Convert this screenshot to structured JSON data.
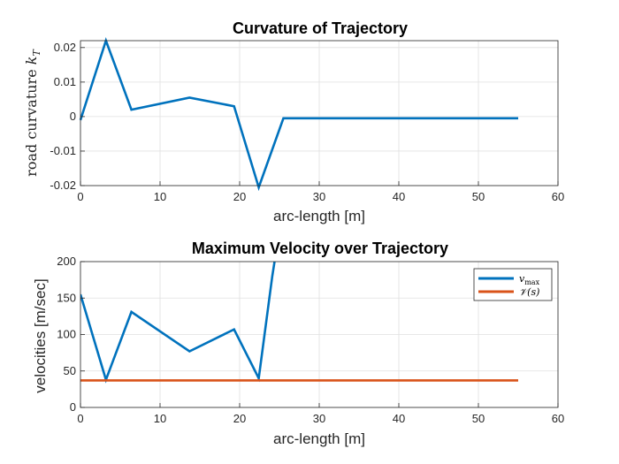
{
  "chart_data": [
    {
      "type": "line",
      "title": "Curvature of Trajectory",
      "xlabel": "arc-length [m]",
      "ylabel": "road curvature k_T",
      "xlim": [
        0,
        60
      ],
      "ylim": [
        -0.02,
        0.022
      ],
      "xticks": [
        "0",
        "10",
        "20",
        "30",
        "40",
        "50",
        "60"
      ],
      "yticks": [
        "-0.02",
        "-0.01",
        "0",
        "0.01",
        "0.02"
      ],
      "grid": true,
      "series": [
        {
          "color": "#0072BD",
          "x": [
            0,
            3.2,
            6.4,
            13.7,
            19.3,
            22.4,
            25.5,
            40,
            55
          ],
          "y": [
            -0.001,
            0.022,
            0.002,
            0.0055,
            0.003,
            -0.0205,
            -0.0005,
            -0.0005,
            -0.0005
          ]
        }
      ]
    },
    {
      "type": "line",
      "title": "Maximum Velocity over Trajectory",
      "xlabel": "arc-length [m]",
      "ylabel": "velocities [m/sec]",
      "xlim": [
        0,
        60
      ],
      "ylim": [
        0,
        200
      ],
      "xticks": [
        "0",
        "10",
        "20",
        "30",
        "40",
        "50",
        "60"
      ],
      "yticks": [
        "0",
        "50",
        "100",
        "150",
        "200"
      ],
      "grid": true,
      "legend": "top-right",
      "series": [
        {
          "name": "v_max",
          "color": "#0072BD",
          "x": [
            0,
            3.2,
            6.4,
            13.7,
            19.3,
            22.4,
            24.1,
            24.6
          ],
          "y": [
            155,
            38,
            131,
            77,
            107,
            40,
            180,
            215
          ]
        },
        {
          "name": "V(s)",
          "color": "#D95319",
          "x": [
            0,
            55
          ],
          "y": [
            37,
            37
          ]
        }
      ]
    }
  ]
}
